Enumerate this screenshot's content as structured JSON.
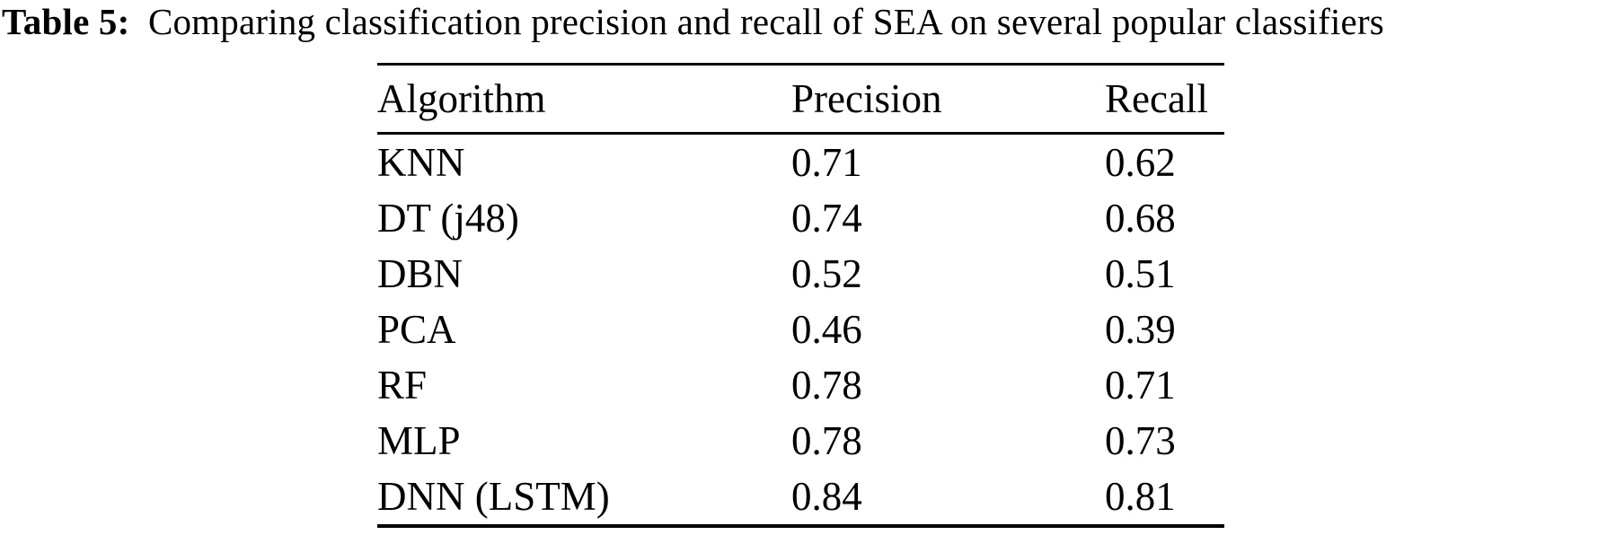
{
  "caption": {
    "label": "Table 5:",
    "text": "Comparing classification precision and recall of SEA on several popular classifiers"
  },
  "table": {
    "columns": [
      "Algorithm",
      "Precision",
      "Recall"
    ],
    "rows": [
      {
        "algorithm": "KNN",
        "precision": "0.71",
        "recall": "0.62"
      },
      {
        "algorithm": "DT (j48)",
        "precision": "0.74",
        "recall": "0.68"
      },
      {
        "algorithm": "DBN",
        "precision": "0.52",
        "recall": "0.51"
      },
      {
        "algorithm": "PCA",
        "precision": "0.46",
        "recall": "0.39"
      },
      {
        "algorithm": "RF",
        "precision": "0.78",
        "recall": "0.71"
      },
      {
        "algorithm": "MLP",
        "precision": "0.78",
        "recall": "0.73"
      },
      {
        "algorithm": "DNN (LSTM)",
        "precision": "0.84",
        "recall": "0.81"
      }
    ]
  },
  "chart_data": {
    "type": "table",
    "title": "Table 5: Comparing classification precision and recall of SEA on several popular classifiers",
    "columns": [
      "Algorithm",
      "Precision",
      "Recall"
    ],
    "categories": [
      "KNN",
      "DT (j48)",
      "DBN",
      "PCA",
      "RF",
      "MLP",
      "DNN (LSTM)"
    ],
    "series": [
      {
        "name": "Precision",
        "values": [
          0.71,
          0.74,
          0.52,
          0.46,
          0.78,
          0.78,
          0.84
        ]
      },
      {
        "name": "Recall",
        "values": [
          0.62,
          0.68,
          0.51,
          0.39,
          0.71,
          0.73,
          0.81
        ]
      }
    ]
  },
  "colors": {
    "text": "#000000",
    "background": "#ffffff",
    "rule": "#000000"
  }
}
